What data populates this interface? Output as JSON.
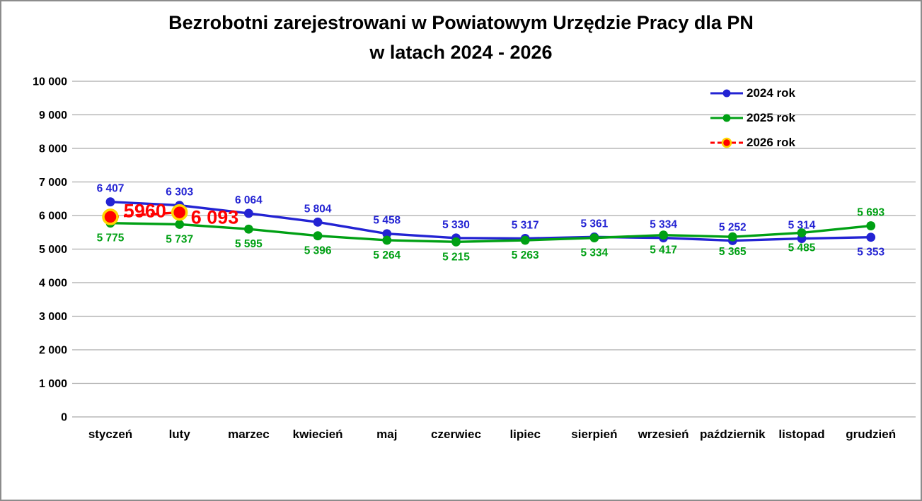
{
  "title": {
    "line1": "Bezrobotni zarejestrowani w Powiatowym Urzędzie Pracy dla PN",
    "line2": "w latach 2024 - 2026"
  },
  "colors": {
    "background": "#ffffff",
    "frame_border": "#8c8c8c",
    "grid": "#ababab",
    "axis_text": "#000000"
  },
  "chart_data": {
    "type": "line",
    "title": "Bezrobotni zarejestrowani w Powiatowym Urzędzie Pracy dla PN w latach 2024 - 2026",
    "xlabel": "",
    "ylabel": "",
    "grid": true,
    "legend_position": "top-right",
    "categories": [
      "styczeń",
      "luty",
      "marzec",
      "kwiecień",
      "maj",
      "czerwiec",
      "lipiec",
      "sierpień",
      "wrzesień",
      "październik",
      "listopad",
      "grudzień"
    ],
    "y_axis": {
      "min": 0,
      "max": 10000,
      "step": 1000,
      "tick_labels": [
        "0",
        "1 000",
        "2 000",
        "3 000",
        "4 000",
        "5 000",
        "6 000",
        "7 000",
        "8 000",
        "9 000",
        "10 000"
      ]
    },
    "series": [
      {
        "name": "2024 rok",
        "color": "#2323d3",
        "line_style": "solid",
        "marker": "circle",
        "values": [
          6407,
          6303,
          6064,
          5804,
          5458,
          5330,
          5317,
          5361,
          5334,
          5252,
          5314,
          5353
        ],
        "labels": [
          "6 407",
          "6 303",
          "6 064",
          "5 804",
          "5 458",
          "5 330",
          "5 317",
          "5 361",
          "5 334",
          "5 252",
          "5 314",
          "5 353"
        ],
        "label_positions": [
          "above",
          "above",
          "above",
          "above",
          "above",
          "above",
          "above",
          "above",
          "above",
          "above",
          "above",
          "below"
        ]
      },
      {
        "name": "2025 rok",
        "color": "#00a014",
        "line_style": "solid",
        "marker": "circle",
        "values": [
          5775,
          5737,
          5595,
          5396,
          5264,
          5215,
          5263,
          5334,
          5417,
          5365,
          5485,
          5693
        ],
        "labels": [
          "5 775",
          "5 737",
          "5 595",
          "5 396",
          "5 264",
          "5 215",
          "5 263",
          "5 334",
          "5 417",
          "5 365",
          "5 485",
          "5 693"
        ],
        "label_positions": [
          "below",
          "below",
          "below",
          "below",
          "below",
          "below",
          "below",
          "below",
          "below",
          "below",
          "below",
          "above"
        ]
      },
      {
        "name": "2026 rok",
        "color": "#ff0000",
        "line_style": "dashed",
        "marker": "circle-ringed",
        "marker_ring": "#ffd700",
        "label_style": "large",
        "values": [
          5960,
          6093
        ],
        "labels": [
          "5960",
          "6 093"
        ],
        "label_positions": [
          "mid-line",
          "right"
        ]
      }
    ]
  }
}
